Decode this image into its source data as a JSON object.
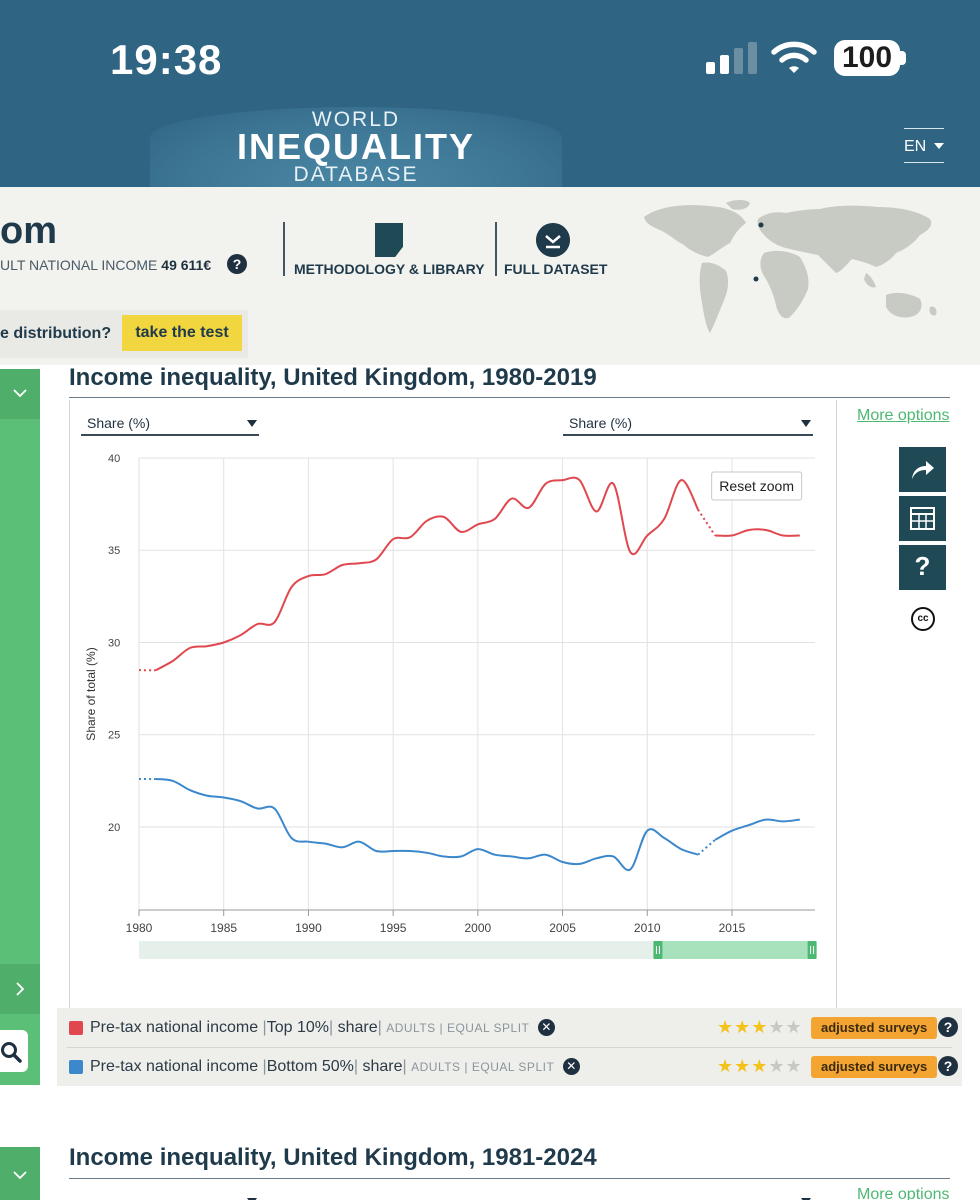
{
  "status_bar": {
    "time": "19:38",
    "battery": "100",
    "icons": [
      "signal-icon",
      "wifi-icon",
      "battery-icon"
    ]
  },
  "header": {
    "logo_world": "WORLD",
    "logo_inequality": "INEQUALITY",
    "logo_database": "DATABASE",
    "language": "EN",
    "colors": {
      "header_bg": "#2f6482"
    }
  },
  "country": {
    "name": "om",
    "income_label": "ULT NATIONAL INCOME",
    "income_value": "49 611€",
    "methodology_label": "METHODOLOGY & LIBRARY",
    "dataset_label": "FULL DATASET",
    "quiz_question": "e distribution?",
    "quiz_button": "take the test"
  },
  "panel1": {
    "title": "Income inequality, United Kingdom, 1980-2019",
    "select_left": "Share (%)",
    "select_right": "Share (%)",
    "more_options": "More options",
    "reset_zoom": "Reset zoom",
    "side_icons": [
      "share-icon",
      "table-icon",
      "help-icon",
      "creative-commons-icon"
    ],
    "cc_text": "cc"
  },
  "chart_data": {
    "type": "line",
    "ylabel": "Share of total (%)",
    "ylim": [
      15.5,
      40
    ],
    "xlim": [
      1980,
      2019.9
    ],
    "y_ticks": [
      "20",
      "25",
      "30",
      "35",
      "40"
    ],
    "x_ticks": [
      "1980",
      "1985",
      "1990",
      "1995",
      "2000",
      "2005",
      "2010",
      "2015"
    ],
    "grid": true,
    "has_range_navigator": true,
    "series": [
      {
        "name": "Pre-tax national income | Top 10% | share",
        "color": "#e0484f",
        "x": [
          1980,
          1981,
          1982,
          1983,
          1984,
          1985,
          1986,
          1987,
          1988,
          1989,
          1990,
          1991,
          1992,
          1993,
          1994,
          1995,
          1996,
          1997,
          1998,
          1999,
          2000,
          2001,
          2002,
          2003,
          2004,
          2005,
          2006,
          2007,
          2008,
          2009,
          2010,
          2011,
          2012,
          2013,
          2014,
          2015,
          2016,
          2017,
          2018,
          2019
        ],
        "y": [
          28.5,
          28.5,
          29.0,
          29.7,
          29.8,
          30.0,
          30.4,
          31.0,
          31.1,
          33.0,
          33.6,
          33.7,
          34.2,
          34.3,
          34.5,
          35.6,
          35.7,
          36.6,
          36.8,
          36.0,
          36.4,
          36.7,
          37.8,
          37.3,
          38.6,
          38.8,
          38.8,
          37.1,
          38.6,
          34.9,
          35.8,
          36.7,
          38.8,
          37.2,
          35.8,
          35.8,
          36.1,
          36.1,
          35.8,
          35.8
        ]
      },
      {
        "name": "Pre-tax national income | Bottom 50% | share",
        "color": "#3c88cc",
        "x": [
          1980,
          1981,
          1982,
          1983,
          1984,
          1985,
          1986,
          1987,
          1988,
          1989,
          1990,
          1991,
          1992,
          1993,
          1994,
          1995,
          1996,
          1997,
          1998,
          1999,
          2000,
          2001,
          2002,
          2003,
          2004,
          2005,
          2006,
          2007,
          2008,
          2009,
          2010,
          2011,
          2012,
          2013,
          2014,
          2015,
          2016,
          2017,
          2018,
          2019
        ],
        "y": [
          22.6,
          22.6,
          22.5,
          22.0,
          21.7,
          21.6,
          21.4,
          21.0,
          21.0,
          19.4,
          19.2,
          19.1,
          18.9,
          19.2,
          18.7,
          18.7,
          18.7,
          18.6,
          18.4,
          18.4,
          18.8,
          18.5,
          18.4,
          18.3,
          18.5,
          18.1,
          18.0,
          18.3,
          18.4,
          17.7,
          19.8,
          19.4,
          18.8,
          18.5,
          19.3,
          19.8,
          20.1,
          20.4,
          20.3,
          20.4
        ]
      }
    ]
  },
  "legend": {
    "rows": [
      {
        "color": "#e0484f",
        "variable": "Pre-tax national income",
        "group": "Top 10%",
        "measure": "share",
        "population": "ADULTS",
        "split": "EQUAL SPLIT",
        "stars": 3,
        "badge": "adjusted surveys"
      },
      {
        "color": "#3c88cc",
        "variable": "Pre-tax national income",
        "group": "Bottom 50%",
        "measure": "share",
        "population": "ADULTS",
        "split": "EQUAL SPLIT",
        "stars": 3,
        "badge": "adjusted surveys"
      }
    ]
  },
  "panel2": {
    "title": "Income inequality, United Kingdom, 1981-2024",
    "more_options": "More options"
  }
}
